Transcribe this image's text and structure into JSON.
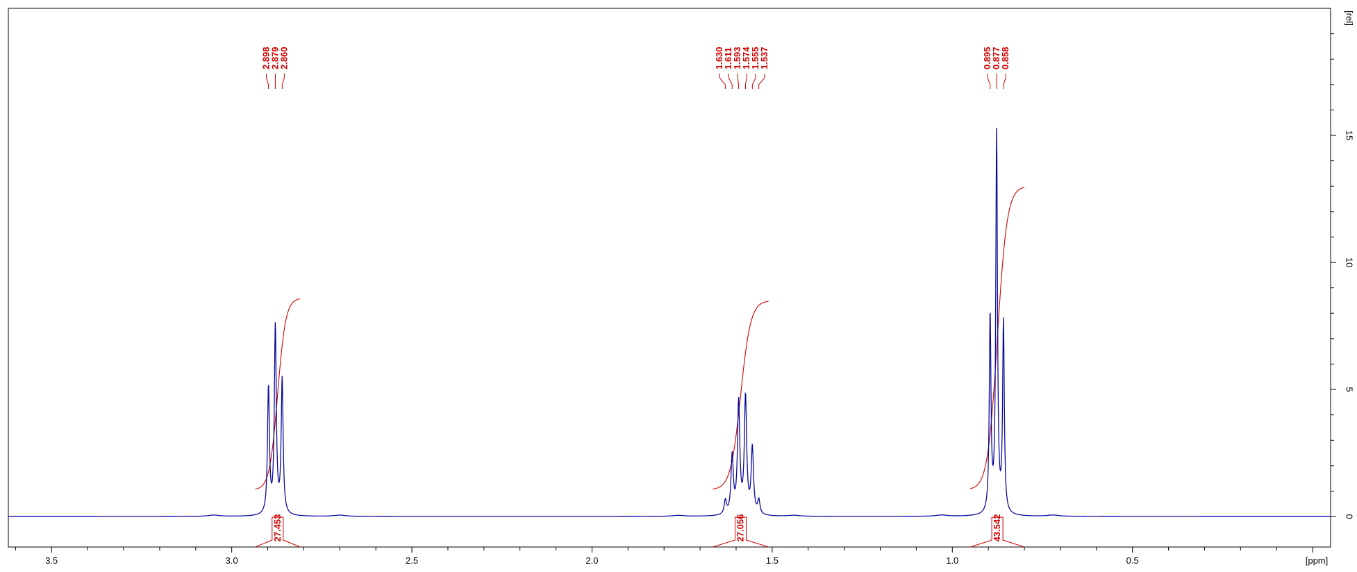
{
  "chart_data": {
    "type": "line",
    "title": "",
    "xlabel": "[ppm]",
    "ylabel": "[rel]",
    "xlim": [
      3.62,
      -0.05
    ],
    "ylim": [
      -1.2,
      20
    ],
    "x_ticks": [
      "3.5",
      "3.0",
      "2.5",
      "2.0",
      "1.5",
      "1.0",
      "0.5"
    ],
    "x_tick_values": [
      3.5,
      3.0,
      2.5,
      2.0,
      1.5,
      1.0,
      0.5
    ],
    "y_ticks": [
      "0",
      "5",
      "10",
      "15"
    ],
    "y_tick_values": [
      0,
      5,
      10,
      15
    ],
    "grid": false,
    "colors": {
      "spectrum": "#0a0a9e",
      "annotation": "#d00000",
      "axis": "#000000"
    },
    "peaks": [
      {
        "ppm": 2.898,
        "height": 5.0,
        "width": 0.0032
      },
      {
        "ppm": 2.879,
        "height": 7.4,
        "width": 0.0032
      },
      {
        "ppm": 2.86,
        "height": 5.3,
        "width": 0.0032
      },
      {
        "ppm": 1.63,
        "height": 0.55,
        "width": 0.0038
      },
      {
        "ppm": 1.611,
        "height": 2.3,
        "width": 0.0038
      },
      {
        "ppm": 1.593,
        "height": 4.4,
        "width": 0.0038
      },
      {
        "ppm": 1.574,
        "height": 4.6,
        "width": 0.0038
      },
      {
        "ppm": 1.555,
        "height": 2.6,
        "width": 0.0038
      },
      {
        "ppm": 1.537,
        "height": 0.55,
        "width": 0.0038
      },
      {
        "ppm": 0.895,
        "height": 7.8,
        "width": 0.0028
      },
      {
        "ppm": 0.877,
        "height": 15.0,
        "width": 0.0028
      },
      {
        "ppm": 0.858,
        "height": 7.5,
        "width": 0.0028
      }
    ],
    "peak_groups": [
      {
        "labels": [
          "2.898",
          "2.879",
          "2.860"
        ],
        "values": [
          2.898,
          2.879,
          2.86
        ]
      },
      {
        "labels": [
          "1.630",
          "1.611",
          "1.593",
          "1.574",
          "1.555",
          "1.537"
        ],
        "values": [
          1.63,
          1.611,
          1.593,
          1.574,
          1.555,
          1.537
        ]
      },
      {
        "labels": [
          "0.895",
          "0.877",
          "0.858"
        ],
        "values": [
          0.895,
          0.877,
          0.858
        ]
      }
    ],
    "integrals": [
      {
        "label": "27.453",
        "value": 27.453,
        "from": 2.935,
        "to": 2.81,
        "y_start": 1.05,
        "y_end": 8.6
      },
      {
        "label": "27.056",
        "value": 27.056,
        "from": 1.665,
        "to": 1.51,
        "y_start": 1.05,
        "y_end": 8.5
      },
      {
        "label": "43.542",
        "value": 43.542,
        "from": 0.95,
        "to": 0.8,
        "y_start": 1.05,
        "y_end": 13.0
      }
    ]
  }
}
